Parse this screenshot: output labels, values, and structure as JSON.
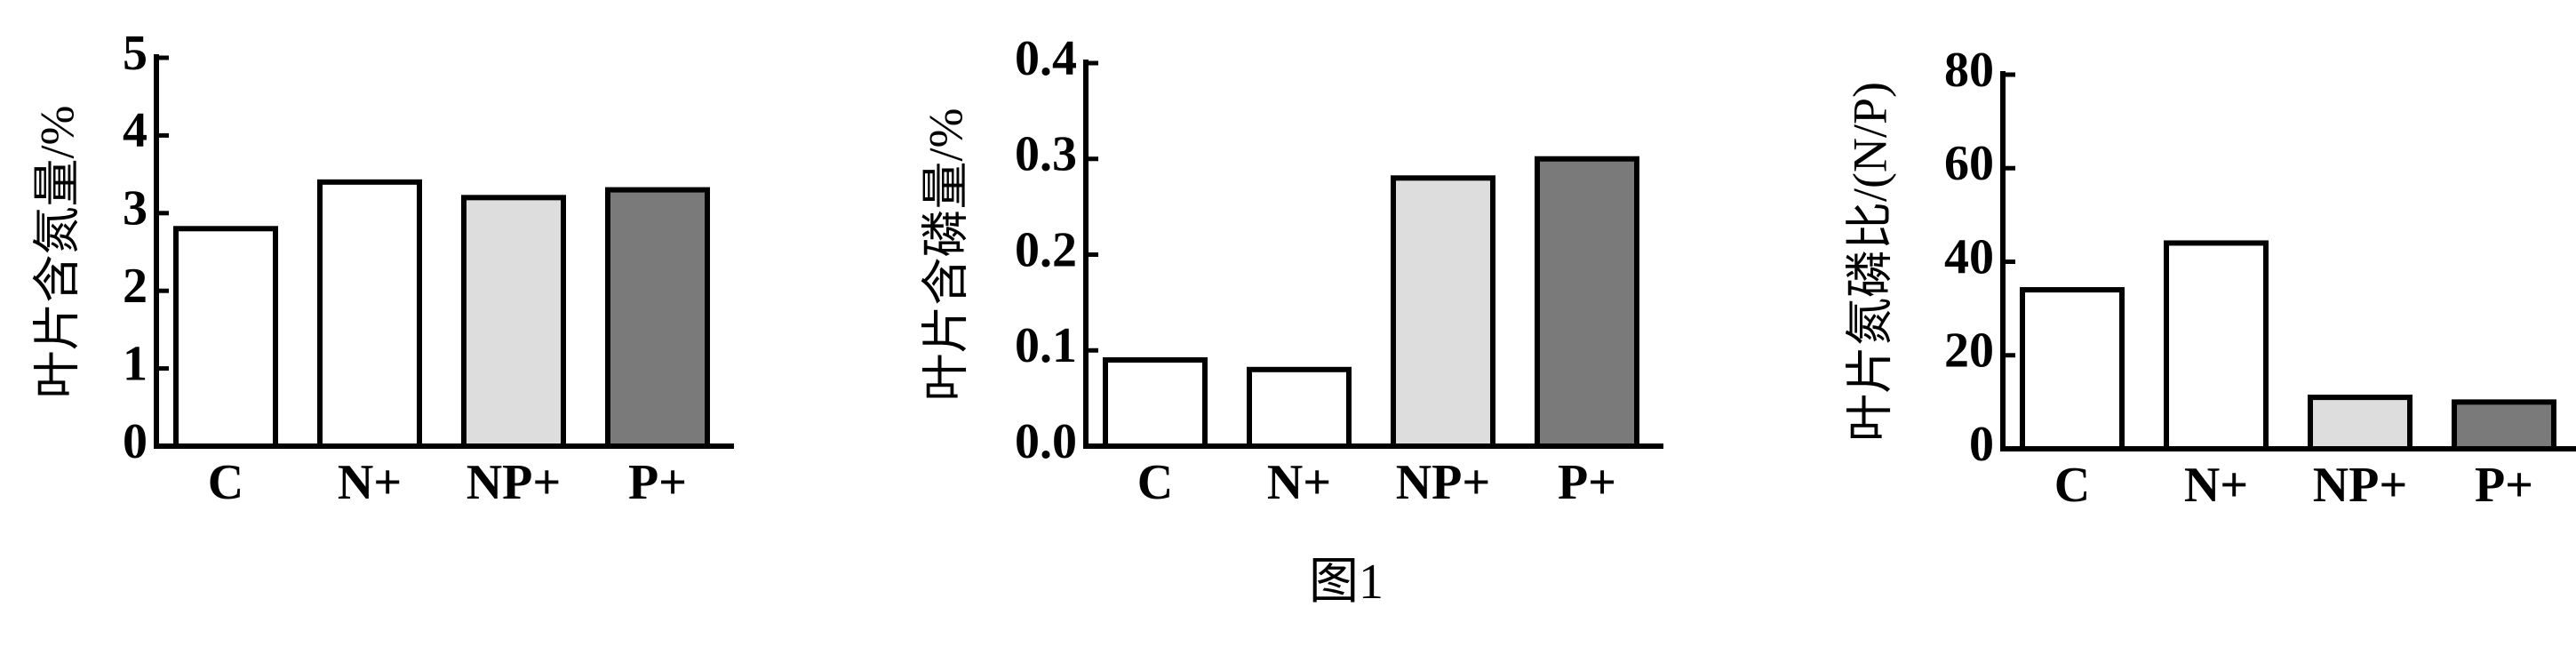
{
  "caption": "图1",
  "chart_data": [
    {
      "type": "bar",
      "ylabel": "叶片含氮量/%",
      "categories": [
        "C",
        "N+",
        "NP+",
        "P+"
      ],
      "values": [
        2.8,
        3.4,
        3.2,
        3.3
      ],
      "colors": [
        "#ffffff",
        "#ffffff",
        "#dddddd",
        "#7a7a7a"
      ],
      "ylim": [
        0,
        5
      ],
      "yticks": [
        0,
        1,
        2,
        3,
        4,
        5
      ]
    },
    {
      "type": "bar",
      "ylabel": "叶片含磷量/%",
      "categories": [
        "C",
        "N+",
        "NP+",
        "P+"
      ],
      "values": [
        0.09,
        0.08,
        0.28,
        0.3
      ],
      "colors": [
        "#ffffff",
        "#ffffff",
        "#dddddd",
        "#7a7a7a"
      ],
      "ylim": [
        0,
        0.4
      ],
      "yticks": [
        {
          "value": 0,
          "label": "0.0"
        },
        0.1,
        0.2,
        0.3,
        0.4
      ]
    },
    {
      "type": "bar",
      "ylabel": "叶片氮磷比/(N/P)",
      "categories": [
        "C",
        "N+",
        "NP+",
        "P+"
      ],
      "values": [
        34,
        44,
        11,
        10
      ],
      "colors": [
        "#ffffff",
        "#ffffff",
        "#dddddd",
        "#7a7a7a"
      ],
      "ylim": [
        0,
        80
      ],
      "yticks": [
        0,
        20,
        40,
        60,
        80
      ]
    }
  ]
}
